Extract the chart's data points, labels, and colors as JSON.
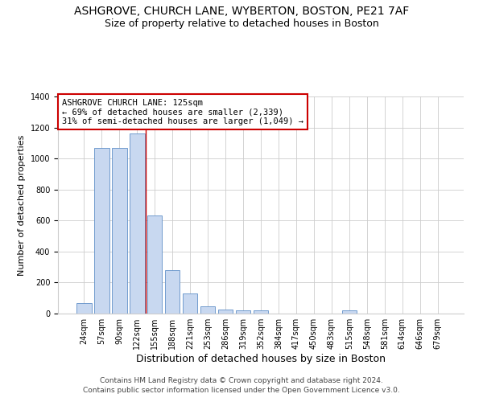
{
  "title": "ASHGROVE, CHURCH LANE, WYBERTON, BOSTON, PE21 7AF",
  "subtitle": "Size of property relative to detached houses in Boston",
  "xlabel": "Distribution of detached houses by size in Boston",
  "ylabel": "Number of detached properties",
  "categories": [
    "24sqm",
    "57sqm",
    "90sqm",
    "122sqm",
    "155sqm",
    "188sqm",
    "221sqm",
    "253sqm",
    "286sqm",
    "319sqm",
    "352sqm",
    "384sqm",
    "417sqm",
    "450sqm",
    "483sqm",
    "515sqm",
    "548sqm",
    "581sqm",
    "614sqm",
    "646sqm",
    "679sqm"
  ],
  "bar_heights": [
    65,
    1070,
    1070,
    1160,
    635,
    280,
    130,
    45,
    25,
    20,
    20,
    0,
    0,
    0,
    0,
    20,
    0,
    0,
    0,
    0,
    0
  ],
  "bar_color": "#c8d8f0",
  "bar_edge_color": "#6090c8",
  "vline_color": "#cc0000",
  "vline_index": 3.5,
  "annotation_text": "ASHGROVE CHURCH LANE: 125sqm\n← 69% of detached houses are smaller (2,339)\n31% of semi-detached houses are larger (1,049) →",
  "annotation_box_color": "#ffffff",
  "annotation_box_edge_color": "#cc0000",
  "ylim": [
    0,
    1400
  ],
  "yticks": [
    0,
    200,
    400,
    600,
    800,
    1000,
    1200,
    1400
  ],
  "footer1": "Contains HM Land Registry data © Crown copyright and database right 2024.",
  "footer2": "Contains public sector information licensed under the Open Government Licence v3.0.",
  "bg_color": "#ffffff",
  "grid_color": "#cccccc",
  "title_fontsize": 10,
  "subtitle_fontsize": 9,
  "xlabel_fontsize": 9,
  "ylabel_fontsize": 8,
  "tick_fontsize": 7,
  "annotation_fontsize": 7.5,
  "footer_fontsize": 6.5
}
